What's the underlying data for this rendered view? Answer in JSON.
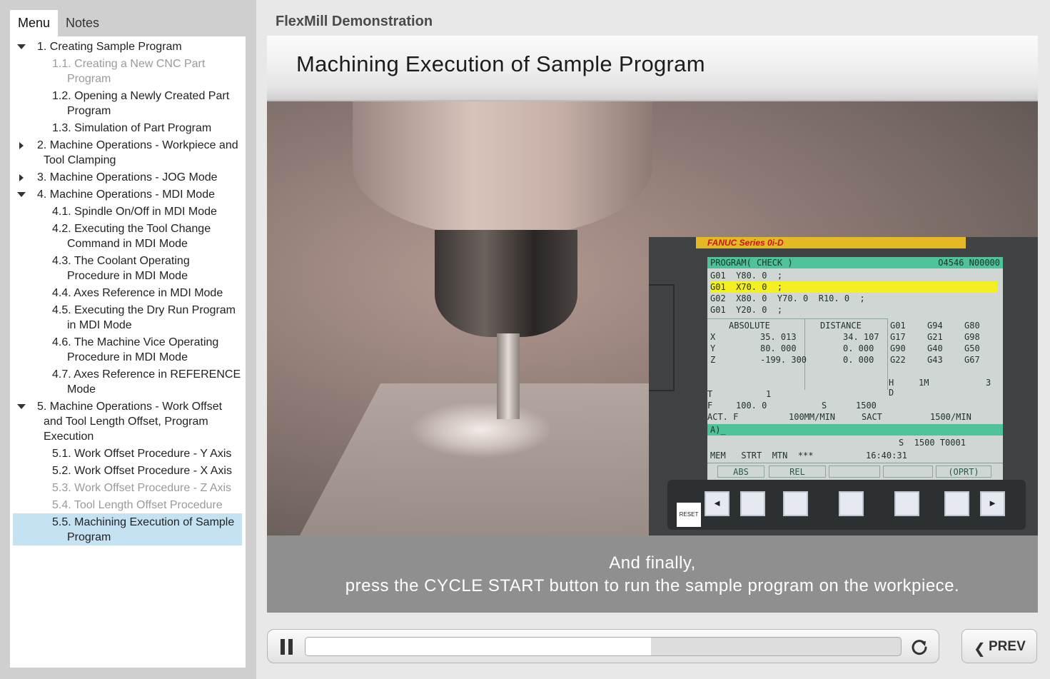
{
  "tabs": [
    {
      "label": "Menu",
      "active": true
    },
    {
      "label": "Notes",
      "active": false
    }
  ],
  "menu": [
    {
      "level": 1,
      "label": "1. Creating Sample Program",
      "caret": "down",
      "state": "normal"
    },
    {
      "level": 2,
      "label": "1.1. Creating a New CNC Part Program",
      "state": "visited"
    },
    {
      "level": 2,
      "label": "1.2. Opening a Newly Created Part Program",
      "state": "normal"
    },
    {
      "level": 2,
      "label": "1.3. Simulation of Part Program",
      "state": "normal"
    },
    {
      "level": 1,
      "label": "2. Machine Operations - Workpiece and Tool Clamping",
      "caret": "right",
      "state": "normal"
    },
    {
      "level": 1,
      "label": "3. Machine Operations - JOG Mode",
      "caret": "right",
      "state": "normal"
    },
    {
      "level": 1,
      "label": "4. Machine Operations - MDI Mode",
      "caret": "down",
      "state": "normal"
    },
    {
      "level": 2,
      "label": "4.1. Spindle On/Off in MDI Mode",
      "state": "normal"
    },
    {
      "level": 2,
      "label": "4.2. Executing the Tool Change Command in MDI Mode",
      "state": "normal"
    },
    {
      "level": 2,
      "label": "4.3. The Coolant Operating Procedure in MDI Mode",
      "state": "normal"
    },
    {
      "level": 2,
      "label": "4.4. Axes Reference in MDI Mode",
      "state": "normal"
    },
    {
      "level": 2,
      "label": "4.5. Executing the Dry Run Program in MDI Mode",
      "state": "normal"
    },
    {
      "level": 2,
      "label": "4.6. The Machine Vice Operating Procedure in MDI Mode",
      "state": "normal"
    },
    {
      "level": 2,
      "label": "4.7. Axes Reference in REFERENCE Mode",
      "state": "normal"
    },
    {
      "level": 1,
      "label": "5. Machine Operations - Work Offset and Tool Length Offset, Program Execution",
      "caret": "down",
      "state": "normal"
    },
    {
      "level": 2,
      "label": "5.1. Work Offset Procedure - Y Axis",
      "state": "normal"
    },
    {
      "level": 2,
      "label": "5.2. Work Offset Procedure - X Axis",
      "state": "normal"
    },
    {
      "level": 2,
      "label": "5.3. Work Offset Procedure - Z Axis",
      "state": "visited"
    },
    {
      "level": 2,
      "label": "5.4. Tool Length Offset Procedure",
      "state": "visited"
    },
    {
      "level": 2,
      "label": "5.5. Machining Execution of Sample Program",
      "state": "current"
    }
  ],
  "app_title": "FlexMill Demonstration",
  "slide": {
    "title": "Machining Execution of Sample Program",
    "caption_line1": "And finally,",
    "caption_line2": "press the CYCLE START button to run the sample program on the workpiece."
  },
  "cnc": {
    "brand": "FANUC Series 0i-D",
    "header_left": "PROGRAM( CHECK )",
    "header_right": "O4546 N00000",
    "program_lines": [
      "G01  Y80. 0  ;",
      "G01  X70. 0  ;",
      "G02  X80. 0  Y70. 0  R10. 0  ;",
      "G01  Y20. 0  ;"
    ],
    "highlight_line": 1,
    "absolute_label": "ABSOLUTE",
    "distance_label": "DISTANCE",
    "axes": [
      {
        "axis": "X",
        "abs": "35. 013",
        "dist": "34. 107"
      },
      {
        "axis": "Y",
        "abs": "80. 000",
        "dist": "0. 000"
      },
      {
        "axis": "Z",
        "abs": "-199. 300",
        "dist": "0. 000"
      }
    ],
    "gcodes": [
      [
        "G01",
        "G94",
        "G80"
      ],
      [
        "G17",
        "G21",
        "G98"
      ],
      [
        "G90",
        "G40",
        "G50"
      ],
      [
        "G22",
        "G43",
        "G67"
      ]
    ],
    "h_row": "H",
    "h_value": "1M",
    "h_right": "3",
    "d_row": "D",
    "t_row": "T",
    "t_value": "1",
    "f_row": "F",
    "f_value": "100. 0",
    "s_label": "S",
    "s_value": "1500",
    "actf_label": "ACT. F",
    "actf_value": "100MM/MIN",
    "sact_label": "SACT",
    "sact_value": "1500/MIN",
    "input_prompt": "A)_",
    "spindle_status": "S  1500 T0001",
    "mode_status": "MEM   STRT  MTN  ***",
    "clock": "16:40:31",
    "softkeys": [
      "ABS",
      "REL",
      "",
      "",
      "(OPRT)"
    ],
    "reset_label": "RESET",
    "left_arrow": "◄",
    "right_arrow": "►"
  },
  "player": {
    "progress": 0.58
  },
  "nav": {
    "prev_label": "PREV",
    "prev_icon": "chevron-left-icon"
  }
}
